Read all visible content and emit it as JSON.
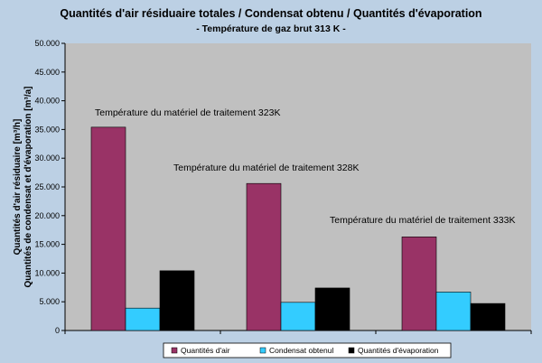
{
  "chart_data": {
    "type": "bar",
    "title": "Quantités d'air résiduaire totales / Condensat obtenu / Quantités d'évaporation",
    "subtitle": "- Température de gaz brut 313 K -",
    "ylabel_lines": [
      "Quantités d'air résiduaire [m³/h]",
      "Quantités de condensat et d'évaporation [m³/a]"
    ],
    "ylim": [
      0,
      50000
    ],
    "yticks": [
      {
        "value": 0,
        "label": "0"
      },
      {
        "value": 5000,
        "label": "5.000"
      },
      {
        "value": 10000,
        "label": "10.000"
      },
      {
        "value": 15000,
        "label": "15.000"
      },
      {
        "value": 20000,
        "label": "20.000"
      },
      {
        "value": 25000,
        "label": "25.000"
      },
      {
        "value": 30000,
        "label": "30.000"
      },
      {
        "value": 35000,
        "label": "35.000"
      },
      {
        "value": 40000,
        "label": "40.000"
      },
      {
        "value": 45000,
        "label": "45.000"
      },
      {
        "value": 50000,
        "label": "50.000"
      }
    ],
    "categories": [
      "323K",
      "328K",
      "333K"
    ],
    "annotations": [
      "Température du matériel de traitement 323K",
      "Température du matériel de traitement 328K",
      "Température du matériel de traitement 333K"
    ],
    "series": [
      {
        "name": "Quantités d'air",
        "color": "#993366",
        "values": [
          35400,
          25600,
          16300
        ]
      },
      {
        "name": "Condensat obtenul",
        "color": "#33ccff",
        "values": [
          3900,
          4900,
          6700
        ]
      },
      {
        "name": "Quantités d'évaporation",
        "color": "#000000",
        "values": [
          10400,
          7400,
          4700
        ]
      }
    ],
    "plot_background": "#c0c0c0",
    "grid": false,
    "legend_position": "bottom"
  }
}
